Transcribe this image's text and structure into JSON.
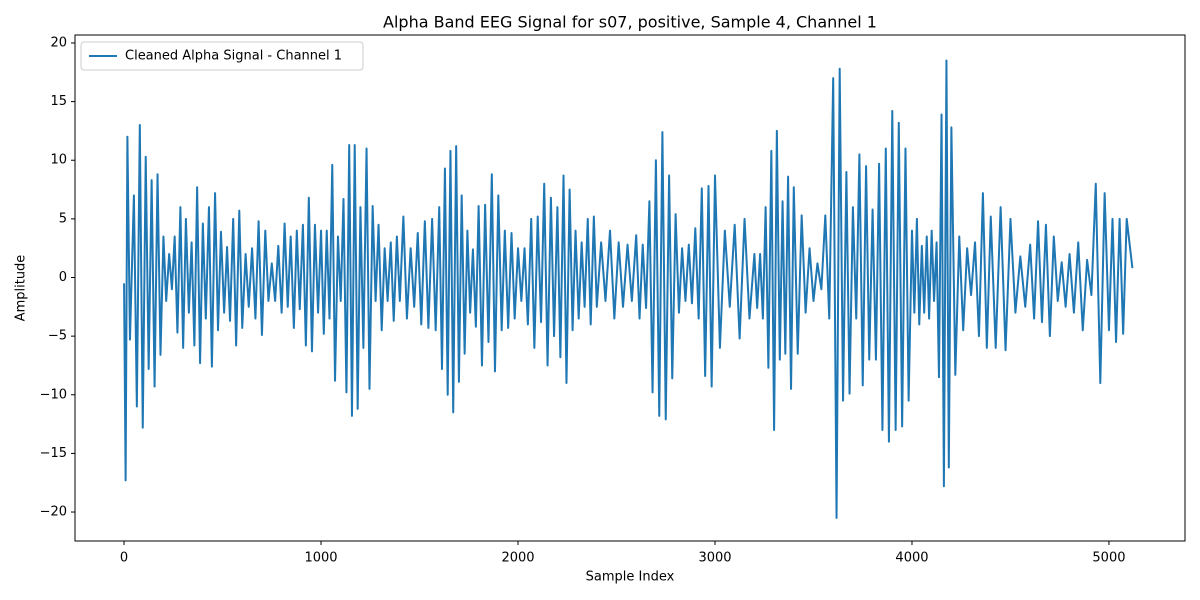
{
  "chart_data": {
    "type": "line",
    "title": "Alpha Band EEG Signal for s07, positive, Sample 4, Channel 1",
    "xlabel": "Sample Index",
    "ylabel": "Amplitude",
    "legend": "upper left",
    "grid": false,
    "xlim": [
      -249,
      5386
    ],
    "ylim": [
      -22.47,
      20.68
    ],
    "xticks": [
      0,
      1000,
      2000,
      3000,
      4000,
      5000
    ],
    "yticks": [
      {
        "value": -20,
        "label": "−20"
      },
      {
        "value": -15,
        "label": "−15"
      },
      {
        "value": -10,
        "label": "−10"
      },
      {
        "value": -5,
        "label": "−5"
      },
      0,
      5,
      10,
      15,
      20
    ],
    "x": [
      0,
      8,
      17,
      30,
      50,
      65,
      80,
      95,
      110,
      125,
      140,
      155,
      170,
      185,
      200,
      214,
      229,
      243,
      257,
      271,
      286,
      300,
      314,
      329,
      343,
      357,
      371,
      386,
      400,
      415,
      431,
      446,
      462,
      477,
      492,
      508,
      523,
      538,
      554,
      569,
      585,
      600,
      617,
      633,
      650,
      667,
      683,
      700,
      717,
      733,
      750,
      767,
      783,
      800,
      815,
      831,
      846,
      862,
      877,
      892,
      908,
      923,
      938,
      954,
      969,
      985,
      1000,
      1014,
      1029,
      1043,
      1057,
      1071,
      1086,
      1100,
      1114,
      1129,
      1143,
      1157,
      1171,
      1186,
      1200,
      1215,
      1231,
      1246,
      1262,
      1277,
      1292,
      1308,
      1323,
      1338,
      1354,
      1369,
      1385,
      1400,
      1418,
      1436,
      1455,
      1473,
      1491,
      1509,
      1527,
      1545,
      1564,
      1582,
      1600,
      1614,
      1629,
      1643,
      1657,
      1671,
      1686,
      1700,
      1714,
      1729,
      1743,
      1757,
      1771,
      1786,
      1800,
      1817,
      1833,
      1850,
      1867,
      1883,
      1900,
      1917,
      1933,
      1950,
      1967,
      1983,
      2000,
      2017,
      2033,
      2050,
      2067,
      2083,
      2100,
      2117,
      2133,
      2150,
      2167,
      2183,
      2200,
      2215,
      2231,
      2246,
      2262,
      2277,
      2292,
      2308,
      2323,
      2338,
      2354,
      2369,
      2385,
      2400,
      2422,
      2444,
      2467,
      2489,
      2511,
      2533,
      2556,
      2578,
      2600,
      2617,
      2633,
      2650,
      2667,
      2683,
      2700,
      2717,
      2733,
      2750,
      2767,
      2783,
      2800,
      2817,
      2833,
      2850,
      2867,
      2883,
      2900,
      2917,
      2933,
      2950,
      2967,
      2983,
      3000,
      3025,
      3050,
      3075,
      3100,
      3125,
      3150,
      3175,
      3200,
      3214,
      3229,
      3243,
      3257,
      3271,
      3286,
      3300,
      3314,
      3329,
      3343,
      3357,
      3371,
      3386,
      3400,
      3420,
      3440,
      3460,
      3480,
      3500,
      3520,
      3540,
      3560,
      3580,
      3600,
      3617,
      3633,
      3650,
      3667,
      3683,
      3700,
      3717,
      3733,
      3750,
      3767,
      3783,
      3800,
      3817,
      3833,
      3850,
      3867,
      3883,
      3900,
      3917,
      3933,
      3950,
      3967,
      3983,
      4000,
      4012,
      4025,
      4037,
      4050,
      4062,
      4075,
      4087,
      4100,
      4112,
      4125,
      4137,
      4150,
      4162,
      4175,
      4187,
      4200,
      4220,
      4240,
      4260,
      4280,
      4300,
      4320,
      4340,
      4360,
      4380,
      4400,
      4425,
      4450,
      4475,
      4500,
      4525,
      4550,
      4575,
      4600,
      4620,
      4640,
      4660,
      4680,
      4700,
      4720,
      4740,
      4760,
      4780,
      4800,
      4822,
      4844,
      4867,
      4889,
      4911,
      4933,
      4956,
      4978,
      5000,
      5018,
      5036,
      5054,
      5072,
      5090,
      5119
    ],
    "series": [
      {
        "name": "Cleaned Alpha Signal - Channel 1",
        "color": "#1f77b4",
        "values": [
          -0.5,
          -17.3,
          12,
          -5.3,
          7,
          -11,
          13,
          -12.8,
          10.3,
          -7.8,
          8.3,
          -9.3,
          8.8,
          -6.6,
          3.5,
          -2,
          2,
          -1,
          3.5,
          -4.7,
          6,
          -6,
          5,
          -3,
          3,
          -5.8,
          7.7,
          -7.3,
          4.6,
          -3.5,
          6,
          -7.6,
          7.2,
          -4.5,
          3.9,
          -3,
          2.6,
          -3.7,
          5,
          -5.8,
          5.7,
          -4.3,
          2,
          -2.5,
          2.5,
          -3.5,
          4.8,
          -4.9,
          4,
          -2,
          1.2,
          -2,
          2.7,
          -3,
          4.6,
          -2.5,
          3.5,
          -4.3,
          4,
          -2.7,
          4.5,
          -5.8,
          6.8,
          -6.3,
          4.5,
          -3,
          4,
          -4.8,
          4,
          -3.5,
          9.6,
          -8.8,
          3.5,
          -2,
          6.7,
          -9.8,
          11.3,
          -11.8,
          11.3,
          -11.2,
          6,
          -6,
          11,
          -9.5,
          6.1,
          -2,
          4.5,
          -4.5,
          2.5,
          -2,
          3,
          -3.7,
          3.5,
          -2,
          5.2,
          -3.5,
          2.5,
          -2.5,
          3.8,
          -4,
          4.8,
          -4.3,
          5,
          -4.5,
          6,
          -7.8,
          9.3,
          -10,
          10.8,
          -11.5,
          11.2,
          -8.9,
          7,
          -6.5,
          4,
          -3,
          2.4,
          -4.2,
          6.1,
          -7.5,
          6.2,
          -5.5,
          8.8,
          -8,
          7,
          -4.5,
          4,
          -4.3,
          3.8,
          -3.5,
          2.5,
          -2,
          2.5,
          -4,
          5,
          -6,
          5.2,
          -3.8,
          8,
          -7.5,
          6.8,
          -5,
          6,
          -6.8,
          8.7,
          -9,
          7.5,
          -4.5,
          4,
          -3.5,
          3,
          -2.5,
          5,
          -4,
          5.2,
          -2.5,
          3,
          -2,
          4,
          -3.5,
          3,
          -2.5,
          2.8,
          -2,
          3.6,
          -3.5,
          2.8,
          -2.6,
          6.5,
          -9.8,
          10,
          -11.8,
          12.4,
          -12.1,
          8.7,
          -8.6,
          5.4,
          -3,
          2.5,
          -2,
          2.8,
          -2.2,
          4.2,
          -3.5,
          7.6,
          -8.4,
          7.8,
          -9.3,
          8.7,
          -6,
          4,
          -2.5,
          4.5,
          -5.2,
          5,
          -3.5,
          2,
          -2.6,
          2,
          -3.5,
          6,
          -7.7,
          10.8,
          -13,
          12.5,
          -7,
          6.5,
          -6.5,
          8.6,
          -9.5,
          7.7,
          -6.5,
          5.3,
          -3,
          2.5,
          -2,
          1.2,
          -1,
          5.3,
          -3.5,
          17,
          -20.5,
          17.8,
          -10.5,
          9,
          -9.9,
          6,
          -3.5,
          10.5,
          -9.2,
          9.5,
          -7,
          5.8,
          -7,
          9.7,
          -13,
          11,
          -14,
          14.2,
          -13,
          13.2,
          -12.7,
          11,
          -10.5,
          4,
          -3,
          5,
          -4,
          2.7,
          -3,
          3.5,
          -3.5,
          4,
          -2,
          3,
          -8.5,
          13.9,
          -17.8,
          18.5,
          -16.2,
          12.8,
          -8.3,
          3.5,
          -4.5,
          2.5,
          -1.5,
          3,
          -5,
          7.2,
          -6,
          5.2,
          -6,
          6,
          -6.2,
          5,
          -3,
          1.8,
          -2.5,
          2.8,
          -3.5,
          4.8,
          -3.8,
          4.5,
          -5,
          3.5,
          -2,
          1.3,
          -2.5,
          2,
          -3,
          3,
          -4.5,
          1.5,
          -1.5,
          8,
          -9,
          7.2,
          -4.5,
          5,
          -5.5,
          5,
          -4.8,
          5,
          0.8
        ]
      }
    ]
  }
}
